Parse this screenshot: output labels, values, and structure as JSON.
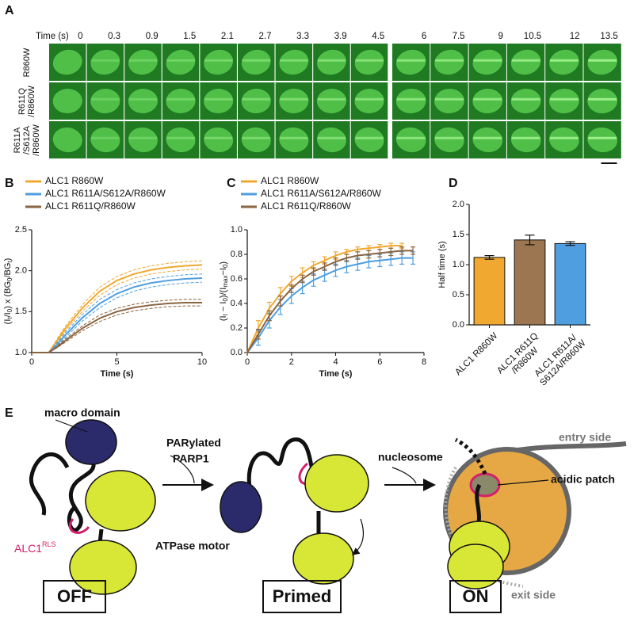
{
  "panel_labels": [
    "A",
    "B",
    "C",
    "D",
    "E"
  ],
  "panel_a": {
    "time_label": "Time (s)",
    "times": [
      "0",
      "0.3",
      "0.9",
      "1.5",
      "2.1",
      "2.7",
      "3.3",
      "3.9",
      "4.5",
      "6",
      "7.5",
      "9",
      "10.5",
      "12",
      "13.5"
    ],
    "rows": [
      "R860W",
      "R611Q\n/R860W",
      "R611A\n/S612A\n/R860W"
    ]
  },
  "chart_data": [
    {
      "type": "line",
      "error_style": "band",
      "legend": "top",
      "xlabel": "Time (s)",
      "ylabel_parts": [
        "(I",
        "t",
        "/I",
        "0",
        ") x (BG",
        "0",
        "/BG",
        "t",
        ")"
      ],
      "x": [
        0,
        1,
        1.5,
        2,
        3,
        4,
        5,
        6,
        7,
        8,
        9,
        10
      ],
      "xlim": [
        0,
        10
      ],
      "xticks": [
        0,
        5,
        10
      ],
      "ylim": [
        1,
        2.5
      ],
      "yticks": [
        {
          "value": 1,
          "label": "1.0"
        },
        1.5,
        {
          "value": 2,
          "label": "2.0"
        },
        2.5
      ],
      "series": [
        {
          "name": "ALC1 R860W",
          "color": "#f0a830",
          "values": [
            1.0,
            1.0,
            1.15,
            1.3,
            1.55,
            1.75,
            1.88,
            1.96,
            2.01,
            2.04,
            2.06,
            2.07
          ],
          "errors": [
            0,
            0,
            0.02,
            0.03,
            0.04,
            0.05,
            0.05,
            0.05,
            0.05,
            0.05,
            0.05,
            0.05
          ]
        },
        {
          "name": "ALC1 R611A/S612A/R860W",
          "color": "#4f9ee0",
          "values": [
            1.0,
            1.0,
            1.1,
            1.22,
            1.43,
            1.6,
            1.72,
            1.8,
            1.85,
            1.88,
            1.9,
            1.91
          ],
          "errors": [
            0,
            0,
            0.02,
            0.03,
            0.04,
            0.05,
            0.05,
            0.05,
            0.05,
            0.05,
            0.05,
            0.05
          ]
        },
        {
          "name": "ALC1 R611Q/R860W",
          "color": "#8a6440",
          "values": [
            1.0,
            1.0,
            1.07,
            1.15,
            1.3,
            1.42,
            1.5,
            1.55,
            1.58,
            1.6,
            1.61,
            1.61
          ],
          "errors": [
            0,
            0,
            0.01,
            0.02,
            0.03,
            0.04,
            0.04,
            0.04,
            0.04,
            0.04,
            0.04,
            0.04
          ]
        }
      ]
    },
    {
      "type": "line",
      "error_style": "bars",
      "legend": "top",
      "xlabel": "Time (s)",
      "ylabel_parts": [
        "(I",
        "t",
        " − I",
        "0",
        ")/(I",
        "max",
        "−I",
        "0",
        ")"
      ],
      "x": [
        0,
        0.5,
        1,
        1.5,
        2,
        2.5,
        3,
        3.5,
        4,
        4.5,
        5,
        5.5,
        6,
        6.5,
        7,
        7.5
      ],
      "xlim": [
        0,
        8
      ],
      "xticks": [
        0,
        2,
        4,
        6,
        8
      ],
      "ylim": [
        0,
        1
      ],
      "yticks": [
        {
          "value": 0,
          "label": "0.0"
        },
        0.2,
        0.4,
        0.6,
        0.8,
        {
          "value": 1,
          "label": "1.0"
        }
      ],
      "series": [
        {
          "name": "ALC1 R860W",
          "color": "#f0a830",
          "values": [
            0,
            0.2,
            0.36,
            0.48,
            0.58,
            0.65,
            0.71,
            0.75,
            0.79,
            0.82,
            0.84,
            0.85,
            0.86,
            0.87,
            0.87,
            null
          ],
          "errors": [
            0,
            0.06,
            0.05,
            0.05,
            0.04,
            0.04,
            0.03,
            0.03,
            0.03,
            0.02,
            0.02,
            0.02,
            0.02,
            0.02,
            0.02,
            null
          ]
        },
        {
          "name": "ALC1 R611A/S612A/R860W",
          "color": "#4f9ee0",
          "values": [
            0,
            0.12,
            0.26,
            0.37,
            0.46,
            0.53,
            0.59,
            0.63,
            0.67,
            0.7,
            0.72,
            0.74,
            0.75,
            0.76,
            0.77,
            0.77
          ],
          "errors": [
            0,
            0.06,
            0.06,
            0.06,
            0.06,
            0.05,
            0.05,
            0.05,
            0.05,
            0.05,
            0.05,
            0.05,
            0.05,
            0.05,
            0.05,
            0.05
          ]
        },
        {
          "name": "ALC1 R611Q/R860W",
          "color": "#8a6440",
          "values": [
            0,
            0.15,
            0.3,
            0.42,
            0.52,
            0.6,
            0.66,
            0.7,
            0.74,
            0.77,
            0.79,
            0.8,
            0.81,
            0.82,
            0.83,
            0.83
          ],
          "errors": [
            0,
            0.04,
            0.04,
            0.04,
            0.03,
            0.03,
            0.03,
            0.03,
            0.03,
            0.03,
            0.03,
            0.03,
            0.03,
            0.03,
            0.03,
            0.03
          ]
        }
      ]
    },
    {
      "type": "bar",
      "ylabel": "Half time (s)",
      "categories": [
        "ALC1 R860W",
        "ALC1 R611Q\n/R860W",
        "ALC1 R611A/\nS612A/R860W"
      ],
      "values": [
        1.12,
        1.41,
        1.35
      ],
      "errors": [
        0.03,
        0.08,
        0.03
      ],
      "colors": [
        "#f0a830",
        "#9b7650",
        "#4f9ee0"
      ],
      "ylim": [
        0,
        2
      ],
      "yticks": [
        {
          "value": 0,
          "label": "0.0"
        },
        0.5,
        {
          "value": 1,
          "label": "1.0"
        },
        1.5,
        {
          "value": 2,
          "label": "2.0"
        }
      ]
    }
  ],
  "panel_e": {
    "macro_domain": "macro domain",
    "alc1": "ALC1",
    "alc1_sup": "RLS",
    "atpase_motor": "ATPase motor",
    "parylated": "PARylated",
    "parp1": "PARP1",
    "nucleosome": "nucleosome",
    "entry_side": "entry side",
    "acidic_patch": "acidic patch",
    "exit_side": "exit side",
    "states": [
      "OFF",
      "Primed",
      "ON"
    ]
  }
}
